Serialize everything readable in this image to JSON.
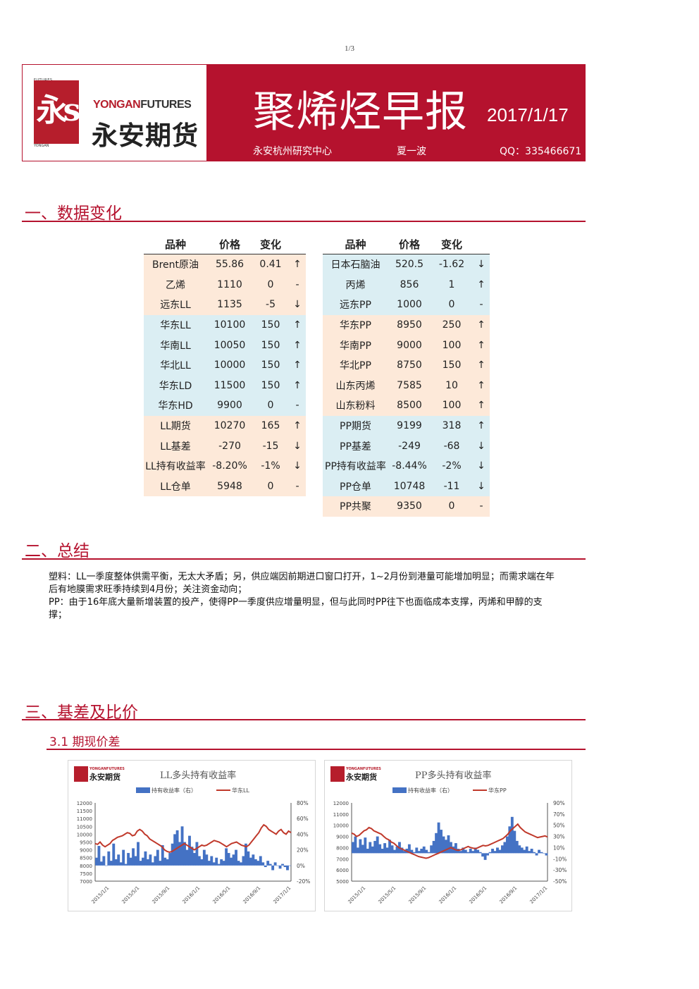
{
  "page_number": "1/3",
  "header": {
    "logo_seal_char": "永s",
    "logo_top_text": "FUTURES",
    "logo_bottom_text": "YONGAN",
    "logo_en_red": "YONGAN",
    "logo_en_dark": "FUTURES",
    "logo_cn": "永安期货",
    "title": "聚烯烃早报",
    "date": "2017/1/17",
    "center": "永安杭州研究中心",
    "author": "夏一波",
    "qq": "QQ：335466671"
  },
  "sections": {
    "s1": "一、数据变化",
    "s2": "二、总结",
    "s3": "三、基差及比价",
    "s3_1": "3.1 期现价差"
  },
  "table_headers": [
    "品种",
    "价格",
    "变化",
    ""
  ],
  "left_table": [
    {
      "name": "Brent原油",
      "price": "55.86",
      "change": "0.41",
      "arrow": "↑",
      "color": "peach"
    },
    {
      "name": "乙烯",
      "price": "1110",
      "change": "0",
      "arrow": "-",
      "color": "peach"
    },
    {
      "name": "远东LL",
      "price": "1135",
      "change": "-5",
      "arrow": "↓",
      "color": "peach"
    },
    {
      "name": "华东LL",
      "price": "10100",
      "change": "150",
      "arrow": "↑",
      "color": "blue"
    },
    {
      "name": "华南LL",
      "price": "10050",
      "change": "150",
      "arrow": "↑",
      "color": "blue"
    },
    {
      "name": "华北LL",
      "price": "10000",
      "change": "150",
      "arrow": "↑",
      "color": "blue"
    },
    {
      "name": "华东LD",
      "price": "11500",
      "change": "150",
      "arrow": "↑",
      "color": "blue"
    },
    {
      "name": "华东HD",
      "price": "9900",
      "change": "0",
      "arrow": "-",
      "color": "blue"
    },
    {
      "name": "LL期货",
      "price": "10270",
      "change": "165",
      "arrow": "↑",
      "color": "peach"
    },
    {
      "name": "LL基差",
      "price": "-270",
      "change": "-15",
      "arrow": "↓",
      "color": "peach"
    },
    {
      "name": "LL持有收益率",
      "price": "-8.20%",
      "change": "-1%",
      "arrow": "↓",
      "color": "peach"
    },
    {
      "name": "LL仓单",
      "price": "5948",
      "change": "0",
      "arrow": "-",
      "color": "peach"
    }
  ],
  "right_table": [
    {
      "name": "日本石脑油",
      "price": "520.5",
      "change": "-1.62",
      "arrow": "↓",
      "color": "blue"
    },
    {
      "name": "丙烯",
      "price": "856",
      "change": "1",
      "arrow": "↑",
      "color": "blue"
    },
    {
      "name": "远东PP",
      "price": "1000",
      "change": "0",
      "arrow": "-",
      "color": "blue"
    },
    {
      "name": "华东PP",
      "price": "8950",
      "change": "250",
      "arrow": "↑",
      "color": "peach"
    },
    {
      "name": "华南PP",
      "price": "9000",
      "change": "100",
      "arrow": "↑",
      "color": "peach"
    },
    {
      "name": "华北PP",
      "price": "8750",
      "change": "150",
      "arrow": "↑",
      "color": "peach"
    },
    {
      "name": "山东丙烯",
      "price": "7585",
      "change": "10",
      "arrow": "↑",
      "color": "peach"
    },
    {
      "name": "山东粉料",
      "price": "8500",
      "change": "100",
      "arrow": "↑",
      "color": "peach"
    },
    {
      "name": "PP期货",
      "price": "9199",
      "change": "318",
      "arrow": "↑",
      "color": "blue"
    },
    {
      "name": "PP基差",
      "price": "-249",
      "change": "-68",
      "arrow": "↓",
      "color": "blue"
    },
    {
      "name": "PP持有收益率",
      "price": "-8.44%",
      "change": "-2%",
      "arrow": "↓",
      "color": "blue"
    },
    {
      "name": "PP仓单",
      "price": "10748",
      "change": "-11",
      "arrow": "↓",
      "color": "blue"
    },
    {
      "name": "PP共聚",
      "price": "9350",
      "change": "0",
      "arrow": "-",
      "color": "peach"
    }
  ],
  "summary": [
    "塑料：LL一季度整体供需平衡，无太大矛盾；另，供应端因前期进口窗口打开，1~2月份到港量可能增加明显；而需求端在年后有地膜需求旺季持续到4月份；关注资金动向；",
    "PP：由于16年底大量新增装置的投产，使得PP一季度供应增量明显，但与此同时PP往下也面临成本支撑，丙烯和甲醇的支撑；"
  ],
  "chart_data": [
    {
      "type": "bar",
      "title": "LL多头持有收益率",
      "logo_text": "永安期货",
      "logo_en": "YONGANFUTURES",
      "legend": [
        "持有收益率（右）",
        "华东LL"
      ],
      "x_ticks": [
        "2015/1/1",
        "2015/5/1",
        "2015/9/1",
        "2016/1/1",
        "2016/5/1",
        "2016/9/1",
        "2017/1/1"
      ],
      "y_left_ticks": [
        "12000",
        "11500",
        "11000",
        "10500",
        "10000",
        "9500",
        "9000",
        "8500",
        "8000",
        "7500",
        "7000"
      ],
      "y_right_ticks": [
        "80%",
        "60%",
        "40%",
        "20%",
        "0%",
        "-20%"
      ],
      "ylim_left": [
        7000,
        12000
      ],
      "ylim_right": [
        -20,
        80
      ],
      "series": [
        {
          "name": "持有收益率（右）",
          "kind": "bar",
          "color": "#4472c4",
          "values": [
            10,
            25,
            5,
            12,
            0,
            18,
            6,
            28,
            8,
            14,
            4,
            20,
            2,
            16,
            10,
            22,
            12,
            30,
            6,
            10,
            18,
            8,
            14,
            4,
            12,
            20,
            6,
            26,
            10,
            8,
            16,
            28,
            40,
            45,
            30,
            50,
            30,
            20,
            38,
            24,
            16,
            30,
            12,
            8,
            20,
            14,
            6,
            12,
            4,
            10,
            2,
            8,
            6,
            22,
            16,
            10,
            14,
            20,
            6,
            4,
            12,
            28,
            18,
            10,
            14,
            8,
            6,
            12,
            4,
            -2,
            6,
            2,
            -6,
            4,
            0,
            -4,
            2,
            -2,
            -6,
            0
          ]
        },
        {
          "name": "华东LL",
          "kind": "line",
          "color": "#c0392b",
          "values": [
            9400,
            9350,
            9500,
            9300,
            9200,
            9300,
            9400,
            9600,
            9700,
            9800,
            9850,
            9900,
            10000,
            10100,
            10050,
            9900,
            9950,
            10200,
            10300,
            10200,
            10000,
            9900,
            9700,
            9600,
            9500,
            9400,
            9300,
            9200,
            9000,
            8900,
            8850,
            8900,
            9000,
            9100,
            9200,
            9300,
            9400,
            9300,
            9200,
            9100,
            9000,
            9100,
            9200,
            9300,
            9250,
            9300,
            9400,
            9500,
            9600,
            9550,
            9500,
            9400,
            9300,
            9200,
            9300,
            9400,
            9450,
            9500,
            9400,
            9300,
            9250,
            9200,
            9300,
            9500,
            9700,
            9900,
            10100,
            10400,
            10600,
            10500,
            10300,
            10200,
            10100,
            10000,
            10200,
            10300,
            10100,
            10000,
            10200,
            10100
          ]
        }
      ]
    },
    {
      "type": "bar",
      "title": "PP多头持有收益率",
      "logo_text": "永安期货",
      "logo_en": "YONGANFUTURES",
      "legend": [
        "持有收益率（右）",
        "华东PP"
      ],
      "x_ticks": [
        "2015/1/1",
        "2015/5/1",
        "2015/9/1",
        "2016/1/1",
        "2016/5/1",
        "2016/9/1",
        "2017/1/1"
      ],
      "y_left_ticks": [
        "12000",
        "11000",
        "10000",
        "9000",
        "8000",
        "7000",
        "6000",
        "5000"
      ],
      "y_right_ticks": [
        "90%",
        "70%",
        "50%",
        "30%",
        "10%",
        "-10%",
        "-30%",
        "-50%"
      ],
      "ylim_left": [
        5000,
        12000
      ],
      "ylim_right": [
        -50,
        90
      ],
      "series": [
        {
          "name": "持有收益率（右）",
          "kind": "bar",
          "color": "#4472c4",
          "values": [
            20,
            30,
            10,
            25,
            15,
            28,
            8,
            20,
            12,
            22,
            30,
            16,
            8,
            18,
            10,
            24,
            14,
            6,
            12,
            20,
            10,
            4,
            8,
            16,
            6,
            2,
            10,
            4,
            8,
            12,
            6,
            2,
            14,
            22,
            36,
            55,
            42,
            30,
            24,
            32,
            20,
            12,
            18,
            8,
            4,
            10,
            6,
            2,
            8,
            4,
            10,
            6,
            2,
            -6,
            -12,
            -4,
            2,
            8,
            4,
            10,
            6,
            14,
            20,
            30,
            48,
            65,
            40,
            22,
            14,
            10,
            6,
            12,
            4,
            8,
            2,
            -4,
            6,
            2,
            0,
            -4
          ]
        },
        {
          "name": "华东PP",
          "kind": "line",
          "color": "#c0392b",
          "values": [
            9300,
            9200,
            9000,
            9100,
            9300,
            9500,
            9600,
            9800,
            9700,
            9500,
            9400,
            9300,
            9200,
            9000,
            8800,
            8700,
            8500,
            8400,
            8200,
            8000,
            7900,
            7800,
            7700,
            7600,
            7500,
            7400,
            7300,
            7200,
            7150,
            7100,
            7050,
            7100,
            7200,
            7300,
            7400,
            7500,
            7600,
            7700,
            7800,
            7900,
            8000,
            7900,
            7800,
            7750,
            7800,
            7900,
            8000,
            8100,
            8000,
            7950,
            7900,
            8000,
            8100,
            8200,
            8150,
            8200,
            8300,
            8400,
            8500,
            8600,
            8700,
            8800,
            9000,
            9200,
            9500,
            9700,
            9900,
            10100,
            9800,
            9600,
            9400,
            9300,
            9200,
            9100,
            9000,
            8900,
            8950,
            9000,
            9050,
            8950
          ]
        }
      ]
    }
  ]
}
